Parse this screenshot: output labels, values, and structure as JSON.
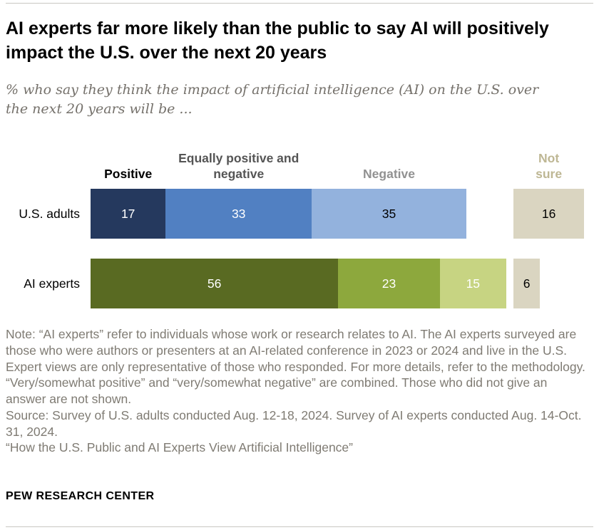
{
  "chart_data": {
    "type": "bar",
    "orientation": "horizontal",
    "stacked": true,
    "unit": "percent",
    "title": "AI experts far more likely than the public to say AI will positively impact the U.S. over the next 20 years",
    "subtitle": "% who say they think the impact of artificial intelligence (AI) on the U.S. over the next 20 years will be ...",
    "xlim": [
      0,
      100
    ],
    "grid": false,
    "legend_position": "top",
    "headers": [
      {
        "label": "Positive",
        "color": "#000000"
      },
      {
        "label": "Equally positive and negative",
        "color": "#555555"
      },
      {
        "label": "Negative",
        "color": "#919191"
      },
      {
        "label": "Not sure",
        "color": "#beb794"
      }
    ],
    "categories": [
      "U.S. adults",
      "AI experts"
    ],
    "series": [
      {
        "name": "Positive",
        "values": [
          17,
          56
        ]
      },
      {
        "name": "Equally positive and negative",
        "values": [
          33,
          23
        ]
      },
      {
        "name": "Negative",
        "values": [
          35,
          15
        ]
      },
      {
        "name": "Not sure",
        "values": [
          16,
          6
        ]
      }
    ],
    "rows": [
      {
        "label": "U.S. adults",
        "segments": [
          {
            "name": "Positive",
            "value": 17,
            "color": "#25395e",
            "text_color": "#ffffff"
          },
          {
            "name": "Equally positive and negative",
            "value": 33,
            "color": "#5180c2",
            "text_color": "#ffffff"
          },
          {
            "name": "Negative",
            "value": 35,
            "color": "#93b2dd",
            "text_color": "#000000"
          }
        ],
        "not_sure": {
          "name": "Not sure",
          "value": 16,
          "color": "#dad5c1",
          "text_color": "#000000"
        }
      },
      {
        "label": "AI experts",
        "segments": [
          {
            "name": "Positive",
            "value": 56,
            "color": "#596a22",
            "text_color": "#ffffff"
          },
          {
            "name": "Equally positive and negative",
            "value": 23,
            "color": "#8da83d",
            "text_color": "#ffffff"
          },
          {
            "name": "Negative",
            "value": 15,
            "color": "#c7d482",
            "text_color": "#ffffff"
          }
        ],
        "not_sure": {
          "name": "Not sure",
          "value": 6,
          "color": "#dad5c1",
          "text_color": "#000000"
        }
      }
    ]
  },
  "notes": {
    "note": "Note: “AI experts” refer to individuals whose work or research relates to AI. The AI experts surveyed are those who were authors or presenters at an AI-related conference in 2023 or 2024 and live in the U.S. Expert views are only representative of those who responded. For more details, refer to the methodology. “Very/somewhat positive” and “very/somewhat negative” are combined. Those who did not give an answer are not shown.",
    "source": "Source: Survey of U.S. adults conducted Aug. 12-18, 2024. Survey of AI experts conducted Aug. 14-Oct. 31, 2024.",
    "citation": "“How the U.S. Public and AI Experts View Artificial Intelligence”"
  },
  "footer": {
    "brand": "PEW RESEARCH CENTER"
  }
}
